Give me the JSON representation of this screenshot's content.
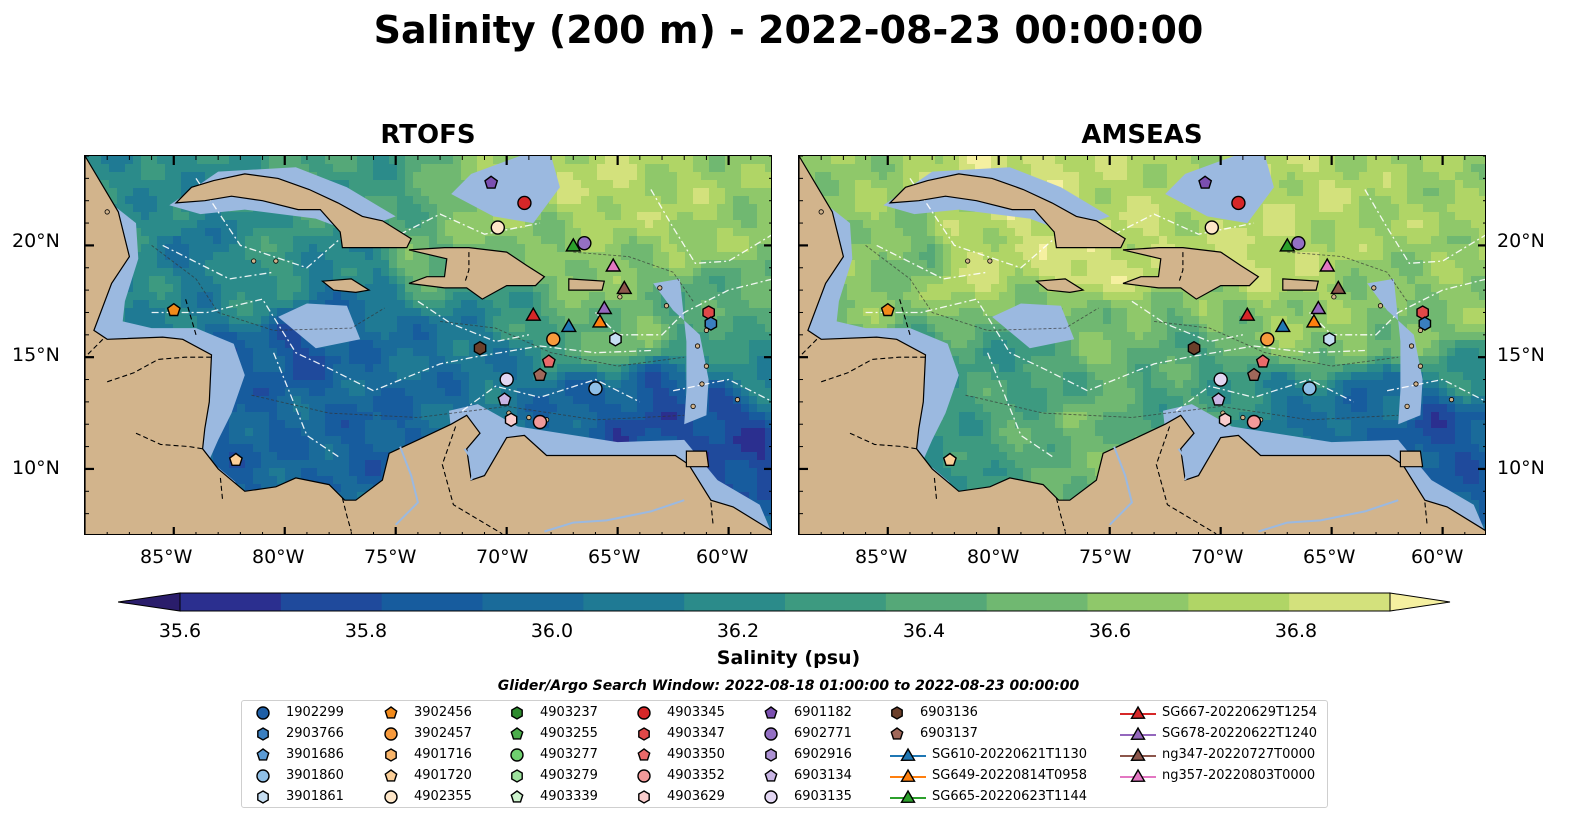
{
  "title": "Salinity (200 m) - 2022-08-23 00:00:00",
  "panels": [
    {
      "title": "RTOFS"
    },
    {
      "title": "AMSEAS"
    }
  ],
  "axes": {
    "lon_ticks": [
      "85°W",
      "80°W",
      "75°W",
      "70°W",
      "65°W",
      "60°W"
    ],
    "lat_ticks": [
      "20°N",
      "15°N",
      "10°N"
    ]
  },
  "colorbar": {
    "ticks": [
      "35.6",
      "35.8",
      "36.0",
      "36.2",
      "36.4",
      "36.6",
      "36.8"
    ],
    "label": "Salinity (psu)",
    "colors": [
      "#2a1d6b",
      "#2b2f8f",
      "#1f4a9c",
      "#175c9e",
      "#1a6b9a",
      "#1f7a94",
      "#2b8b8a",
      "#3d9a80",
      "#55a878",
      "#70b871",
      "#8fc86a",
      "#b0d566",
      "#d3e17c",
      "#f5f0a0"
    ]
  },
  "legend": {
    "title": "Glider/Argo Search Window: 2022-08-18 01:00:00 to 2022-08-23 00:00:00",
    "columns": [
      [
        {
          "label": "1902299",
          "marker": "circle",
          "color": "#1f5fa6"
        },
        {
          "label": "2903766",
          "marker": "hexagon",
          "color": "#3a7fc0"
        },
        {
          "label": "3901686",
          "marker": "pentagon",
          "color": "#5b9bd5"
        },
        {
          "label": "3901860",
          "marker": "circle",
          "color": "#8fbfe6"
        },
        {
          "label": "3901861",
          "marker": "hexagon",
          "color": "#c6def2"
        }
      ],
      [
        {
          "label": "3902456",
          "marker": "pentagon",
          "color": "#f28a1a"
        },
        {
          "label": "3902457",
          "marker": "circle",
          "color": "#f79a3c"
        },
        {
          "label": "4901716",
          "marker": "hexagon",
          "color": "#f9b56a"
        },
        {
          "label": "4901720",
          "marker": "pentagon",
          "color": "#fbcf98"
        },
        {
          "label": "4902355",
          "marker": "circle",
          "color": "#fde6c8"
        }
      ],
      [
        {
          "label": "4903237",
          "marker": "hexagon",
          "color": "#2e8b2e"
        },
        {
          "label": "4903255",
          "marker": "pentagon",
          "color": "#4cae4c"
        },
        {
          "label": "4903277",
          "marker": "circle",
          "color": "#6fcf6f"
        },
        {
          "label": "4903279",
          "marker": "hexagon",
          "color": "#9ee29e"
        },
        {
          "label": "4903339",
          "marker": "pentagon",
          "color": "#cdf3cd"
        }
      ],
      [
        {
          "label": "4903345",
          "marker": "circle",
          "color": "#d62728"
        },
        {
          "label": "4903347",
          "marker": "hexagon",
          "color": "#e04848"
        },
        {
          "label": "4903350",
          "marker": "pentagon",
          "color": "#ea6a6a"
        },
        {
          "label": "4903352",
          "marker": "circle",
          "color": "#f29a9a"
        },
        {
          "label": "4903629",
          "marker": "hexagon",
          "color": "#f9cccc"
        }
      ],
      [
        {
          "label": "6901182",
          "marker": "pentagon",
          "color": "#7b4fb0"
        },
        {
          "label": "6902771",
          "marker": "circle",
          "color": "#9470c4"
        },
        {
          "label": "6902916",
          "marker": "hexagon",
          "color": "#ad92d4"
        },
        {
          "label": "6903134",
          "marker": "pentagon",
          "color": "#c8b5e4"
        },
        {
          "label": "6903135",
          "marker": "circle",
          "color": "#e2d6f2"
        }
      ],
      [
        {
          "label": "6903136",
          "marker": "hexagon",
          "color": "#6b3f2a"
        },
        {
          "label": "6903137",
          "marker": "pentagon",
          "color": "#a0685a"
        },
        {
          "label": "SG610-20220621T1130",
          "marker": "triangle-line",
          "color": "#1f77b4"
        },
        {
          "label": "SG649-20220814T0958",
          "marker": "triangle-line",
          "color": "#ff7f0e"
        },
        {
          "label": "SG665-20220623T1144",
          "marker": "triangle-line",
          "color": "#2ca02c"
        }
      ],
      [
        {
          "label": "SG667-20220629T1254",
          "marker": "triangle-line",
          "color": "#d62728"
        },
        {
          "label": "SG678-20220622T1240",
          "marker": "triangle-line",
          "color": "#9467bd"
        },
        {
          "label": "ng347-20220727T0000",
          "marker": "triangle-line",
          "color": "#8c564b"
        },
        {
          "label": "ng357-20220803T0000",
          "marker": "triangle-line",
          "color": "#e377c2"
        }
      ]
    ]
  },
  "colors": {
    "land": "#d2b48c",
    "shelf": "#9bb9e0",
    "border": "#000000"
  },
  "map_extent": {
    "lon": [
      -89,
      -58
    ],
    "lat": [
      7,
      24
    ]
  },
  "markers": [
    {
      "name": "4903345",
      "lon": -69.2,
      "lat": 21.9,
      "marker": "circle",
      "color": "#d62728"
    },
    {
      "name": "6901182",
      "lon": -70.7,
      "lat": 22.8,
      "marker": "pentagon",
      "color": "#7b4fb0"
    },
    {
      "name": "4902355",
      "lon": -70.4,
      "lat": 20.8,
      "marker": "circle",
      "color": "#fde6c8"
    },
    {
      "name": "SG665-20220623T1144",
      "lon": -67.0,
      "lat": 20.0,
      "marker": "triangle",
      "color": "#2ca02c"
    },
    {
      "name": "6902771",
      "lon": -66.5,
      "lat": 20.1,
      "marker": "circle",
      "color": "#9470c4"
    },
    {
      "name": "ng357-20220803T0000",
      "lon": -65.2,
      "lat": 19.1,
      "marker": "triangle",
      "color": "#e377c2"
    },
    {
      "name": "ng347-20220727T0000",
      "lon": -64.7,
      "lat": 18.1,
      "marker": "triangle",
      "color": "#8c564b"
    },
    {
      "name": "SG678-20220622T1240",
      "lon": -65.6,
      "lat": 17.2,
      "marker": "triangle",
      "color": "#9467bd"
    },
    {
      "name": "SG649-20220814T0958",
      "lon": -65.8,
      "lat": 16.6,
      "marker": "triangle",
      "color": "#ff7f0e"
    },
    {
      "name": "SG610-20220621T1130",
      "lon": -67.2,
      "lat": 16.4,
      "marker": "triangle",
      "color": "#1f77b4"
    },
    {
      "name": "SG667-20220629T1254",
      "lon": -68.8,
      "lat": 16.9,
      "marker": "triangle",
      "color": "#d62728"
    },
    {
      "name": "3902457",
      "lon": -67.9,
      "lat": 15.8,
      "marker": "circle",
      "color": "#f79a3c"
    },
    {
      "name": "3901861",
      "lon": -65.1,
      "lat": 15.8,
      "marker": "hexagon",
      "color": "#c6def2"
    },
    {
      "name": "4903347",
      "lon": -60.9,
      "lat": 17.0,
      "marker": "hexagon",
      "color": "#e04848"
    },
    {
      "name": "2903766",
      "lon": -60.8,
      "lat": 16.5,
      "marker": "hexagon",
      "color": "#3a7fc0"
    },
    {
      "name": "6903136",
      "lon": -71.2,
      "lat": 15.4,
      "marker": "hexagon",
      "color": "#6b3f2a"
    },
    {
      "name": "4903350",
      "lon": -68.1,
      "lat": 14.8,
      "marker": "pentagon",
      "color": "#ea6a6a"
    },
    {
      "name": "6903137",
      "lon": -68.5,
      "lat": 14.2,
      "marker": "pentagon",
      "color": "#a0685a"
    },
    {
      "name": "6903135",
      "lon": -70.0,
      "lat": 14.0,
      "marker": "circle",
      "color": "#e2d6f2"
    },
    {
      "name": "3901860",
      "lon": -66.0,
      "lat": 13.6,
      "marker": "circle",
      "color": "#8fbfe6"
    },
    {
      "name": "6903134",
      "lon": -70.1,
      "lat": 13.1,
      "marker": "pentagon",
      "color": "#c8b5e4"
    },
    {
      "name": "4903352",
      "lon": -68.5,
      "lat": 12.1,
      "marker": "circle",
      "color": "#f29a9a"
    },
    {
      "name": "4903629",
      "lon": -69.8,
      "lat": 12.2,
      "marker": "hexagon",
      "color": "#f9cccc"
    },
    {
      "name": "3902456",
      "lon": -85.0,
      "lat": 17.1,
      "marker": "pentagon",
      "color": "#f28a1a"
    },
    {
      "name": "4901720",
      "lon": -82.2,
      "lat": 10.4,
      "marker": "pentagon",
      "color": "#fbcf98"
    }
  ]
}
